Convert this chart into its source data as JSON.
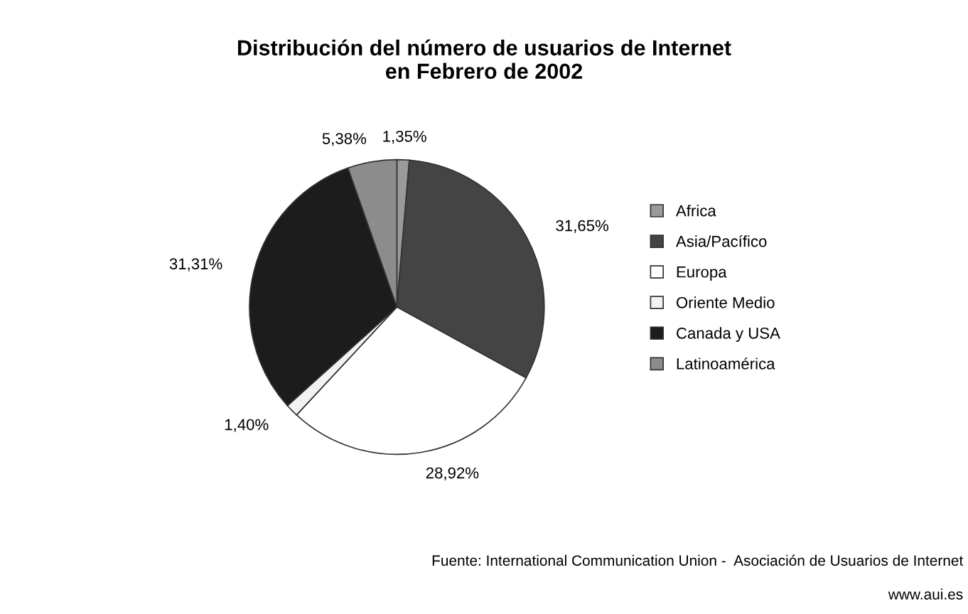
{
  "chart_data": {
    "type": "pie",
    "title": "Distribución del número de usuarios de Internet\nen Febrero de 2002",
    "categories": [
      "Africa",
      "Asia/Pacífico",
      "Europa",
      "Oriente Medio",
      "Canada y USA",
      "Latinoamérica"
    ],
    "values": [
      1.35,
      31.65,
      28.92,
      1.4,
      31.31,
      5.38
    ],
    "colors": [
      "#9a9a9a",
      "#444444",
      "#ffffff",
      "#f2f2f2",
      "#1c1c1c",
      "#8c8c8c"
    ],
    "value_labels": [
      "1,35%",
      "31,65%",
      "28,92%",
      "1,40%",
      "31,31%",
      "5,38%"
    ],
    "legend": "right",
    "annotations": [
      "Fuente: International Communication Union -  Asociación de Usuarios de Internet",
      "www.aui.es"
    ]
  }
}
